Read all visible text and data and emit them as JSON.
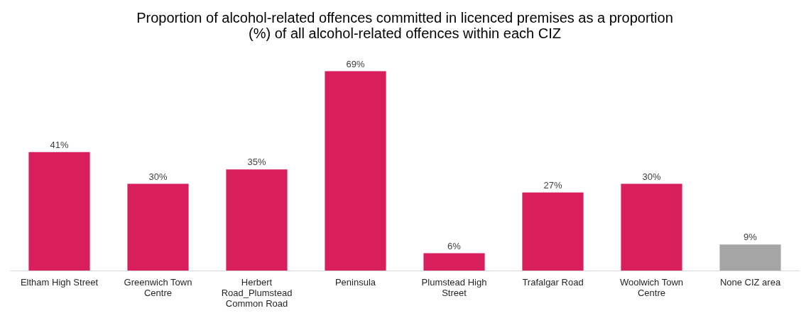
{
  "chart_data": {
    "type": "bar",
    "title": "Proportion of alcohol-related offences committed in licenced premises as a proportion (%) of all alcohol-related offences within each CIZ",
    "categories": [
      "Eltham High Street",
      "Greenwich Town Centre",
      "Herbert Road_Plumstead Common Road",
      "Peninsula",
      "Plumstead High Street",
      "Trafalgar Road",
      "Woolwich Town Centre",
      "None CIZ area"
    ],
    "values": [
      41,
      30,
      35,
      69,
      6,
      27,
      30,
      9
    ],
    "colors": [
      "#d81e5b",
      "#d81e5b",
      "#d81e5b",
      "#d81e5b",
      "#d81e5b",
      "#d81e5b",
      "#d81e5b",
      "#a5a5a5"
    ],
    "value_labels": [
      "41%",
      "30%",
      "35%",
      "69%",
      "6%",
      "27%",
      "30%",
      "9%"
    ],
    "grid": false
  }
}
